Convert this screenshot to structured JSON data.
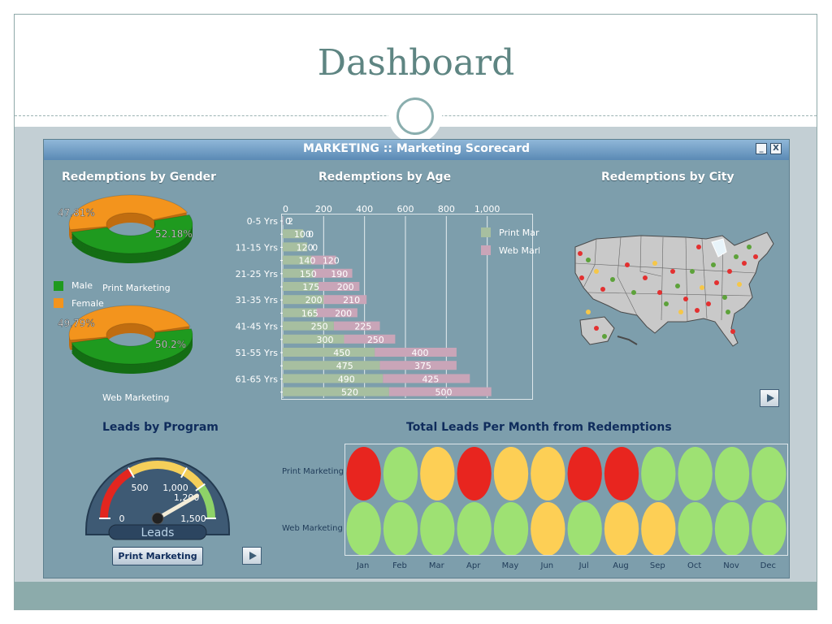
{
  "slide": {
    "title": "Dashboard"
  },
  "panel": {
    "title": "MARKETING :: Marketing Scorecard",
    "minimize": "_",
    "close": "X"
  },
  "gender": {
    "title": "Redemptions by Gender",
    "print": {
      "caption": "Print Marketing",
      "male_pct": 52.18,
      "female_pct": 47.81,
      "male_label": "52.18%",
      "female_label": "47.81%"
    },
    "web": {
      "caption": "Web Marketing",
      "male_pct": 50.2,
      "female_pct": 49.79,
      "male_label": "50.2%",
      "female_label": "49.79%"
    },
    "legend": [
      {
        "label": "Male",
        "color": "#1f9a1f"
      },
      {
        "label": "Female",
        "color": "#f3941d"
      }
    ]
  },
  "age": {
    "title": "Redemptions by Age",
    "legend": [
      {
        "label": "Print Marketing",
        "color": "#a7bfa0"
      },
      {
        "label": "Web Marketing",
        "color": "#c9a5b8"
      }
    ]
  },
  "city": {
    "title": "Redemptions by City"
  },
  "program": {
    "title": "Leads by Program",
    "gauge_label": "Leads",
    "value": 1250,
    "button": "Print Marketing"
  },
  "months": {
    "title": "Total Leads Per Month from Redemptions",
    "rows": [
      "Print Marketing",
      "Web Marketing"
    ],
    "labels": [
      "Jan",
      "Feb",
      "Mar",
      "Apr",
      "May",
      "Jun",
      "Jul",
      "Aug",
      "Sep",
      "Oct",
      "Nov",
      "Dec"
    ],
    "status": {
      "print": [
        "red",
        "green",
        "yellow",
        "red",
        "yellow",
        "yellow",
        "red",
        "red",
        "green",
        "green",
        "green",
        "green"
      ],
      "web": [
        "green",
        "green",
        "green",
        "green",
        "green",
        "yellow",
        "green",
        "yellow",
        "yellow",
        "green",
        "green",
        "green"
      ]
    },
    "colors": {
      "red": "#e8251f",
      "green": "#9ee173",
      "yellow": "#fdcf55"
    }
  },
  "chart_data": [
    {
      "type": "bar",
      "orientation": "horizontal",
      "stacked": true,
      "title": "Redemptions by Age",
      "categories": [
        "0-5 Yrs",
        "",
        "11-15 Yrs",
        "",
        "21-25 Yrs",
        "",
        "31-35 Yrs",
        "",
        "41-45 Yrs",
        "",
        "51-55 Yrs",
        "",
        "61-65 Yrs",
        ""
      ],
      "series": [
        {
          "name": "Print Marketing",
          "values": [
            0,
            100,
            120,
            140,
            150,
            175,
            200,
            165,
            250,
            300,
            450,
            475,
            490,
            520
          ],
          "labels": [
            "0",
            "100",
            "120",
            "140",
            "150",
            "175",
            "200",
            "165",
            "250",
            "300",
            "450",
            "475",
            "490",
            "520"
          ]
        },
        {
          "name": "Web Marketing",
          "values": [
            2,
            0,
            0,
            120,
            190,
            200,
            210,
            200,
            225,
            250,
            400,
            375,
            425,
            500
          ],
          "labels": [
            "2",
            "0",
            "0",
            "120",
            "190",
            "200",
            "210",
            "200",
            "225",
            "250",
            "400",
            "375",
            "425",
            "500"
          ]
        }
      ],
      "xticks": [
        "0",
        "200",
        "400",
        "600",
        "800",
        "1,000"
      ],
      "xlim": [
        0,
        1200
      ],
      "legend_position": "top-right",
      "grid": true
    },
    {
      "type": "gauge",
      "title": "Leads by Program",
      "value": 1250,
      "range": [
        0,
        1500
      ],
      "ticks": [
        "0",
        "500",
        "1,000",
        "1,200",
        "1,500"
      ]
    }
  ]
}
